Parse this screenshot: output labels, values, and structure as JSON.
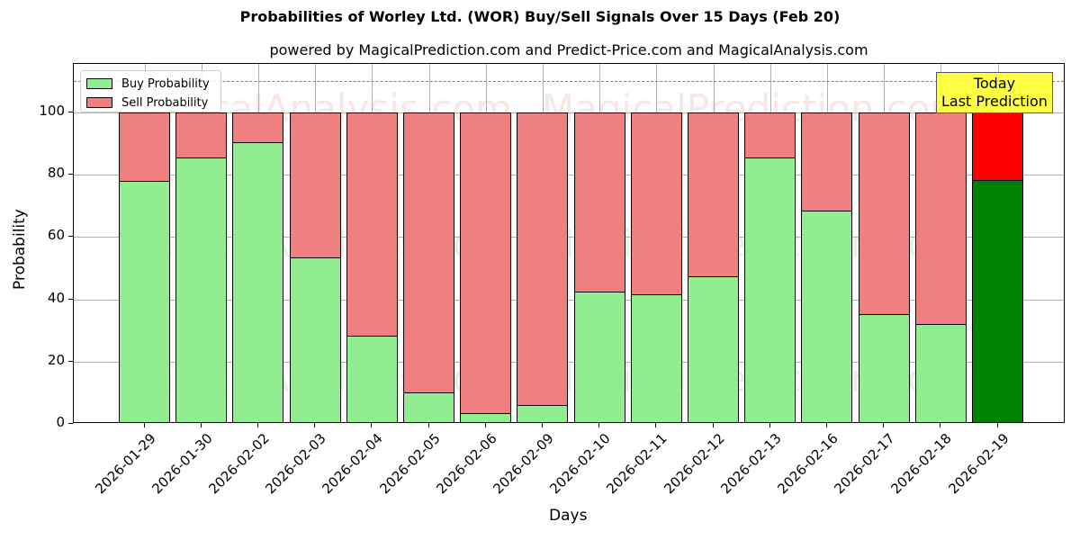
{
  "title": "Probabilities of Worley Ltd. (WOR) Buy/Sell Signals Over 15 Days (Feb 20)",
  "subtitle": "powered by MagicalPrediction.com and Predict-Price.com and MagicalAnalysis.com",
  "legend": {
    "buy_label": "Buy Probability",
    "sell_label": "Sell Probability"
  },
  "annotation": {
    "line1": "Today",
    "line2": "Last Prediction"
  },
  "watermarks": [
    "MagicalAnalysis.com",
    "MagicalPrediction.com"
  ],
  "colors": {
    "buy": "#90ee90",
    "sell": "#f08080",
    "buy_today": "#008000",
    "sell_today": "#ff0000",
    "annotation_bg": "#ffff44"
  },
  "chart_data": {
    "type": "bar",
    "stacked": true,
    "title": "Probabilities of Worley Ltd. (WOR) Buy/Sell Signals Over 15 Days (Feb 20)",
    "subtitle": "powered by MagicalPrediction.com and Predict-Price.com and MagicalAnalysis.com",
    "xlabel": "Days",
    "ylabel": "Probability",
    "ylim": [
      0,
      115
    ],
    "yticks": [
      0,
      20,
      40,
      60,
      80,
      100
    ],
    "grid": true,
    "legend_position": "upper left",
    "reference_line": {
      "y": 110,
      "style": "dashed",
      "color": "#808080"
    },
    "categories": [
      "2026-01-29",
      "2026-01-30",
      "2026-02-02",
      "2026-02-03",
      "2026-02-04",
      "2026-02-05",
      "2026-02-06",
      "2026-02-09",
      "2026-02-10",
      "2026-02-11",
      "2026-02-12",
      "2026-02-13",
      "2026-02-16",
      "2026-02-17",
      "2026-02-18",
      "2026-02-19"
    ],
    "series": [
      {
        "name": "Buy Probability",
        "values": [
          78.1,
          85.5,
          90.4,
          53.4,
          28.4,
          10.0,
          3.6,
          6.2,
          42.6,
          41.5,
          47.3,
          85.5,
          68.4,
          35.4,
          32.2,
          78.2
        ]
      },
      {
        "name": "Sell Probability",
        "values": [
          21.9,
          14.5,
          9.6,
          46.6,
          71.6,
          90.0,
          96.4,
          93.8,
          57.4,
          58.5,
          52.7,
          14.5,
          31.6,
          64.6,
          67.8,
          21.8
        ]
      }
    ],
    "annotations": [
      {
        "text": "Today\nLast Prediction",
        "x": "2026-02-19",
        "y": 105
      }
    ]
  }
}
